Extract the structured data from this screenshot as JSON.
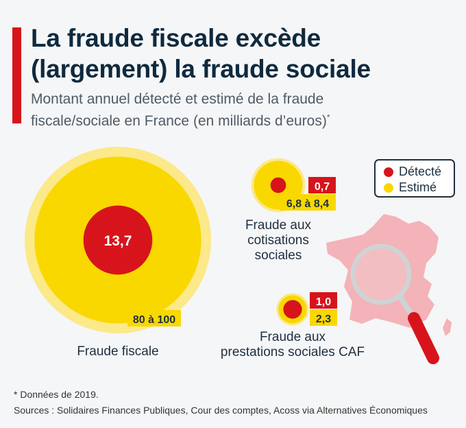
{
  "header": {
    "title_line1": "La fraude fiscale excède",
    "title_line2": "(largement) la fraude sociale",
    "subtitle_line1": "Montant annuel détecté et estimé de la fraude",
    "subtitle_line2": "fiscale/sociale en France (en milliards d’euros)",
    "subtitle_mark": "*"
  },
  "legend": {
    "detected_label": "Détecté",
    "estimated_label": "Estimé"
  },
  "colors": {
    "detected": "#d7141b",
    "estimated": "#f9d800",
    "estimated_halo": "#fbe98a",
    "map": "#f3b3b8",
    "magnifier": "#d7141b"
  },
  "icons": {
    "map": "france-map-icon",
    "magnifier": "magnifying-glass-icon"
  },
  "chart_data": {
    "type": "bubble",
    "unit": "milliards d’euros",
    "items": [
      {
        "category": "Fraude fiscale",
        "detected": 13.7,
        "detected_label": "13,7",
        "estimated_min": 80,
        "estimated_max": 100,
        "estimated_label": "80 à 100"
      },
      {
        "category": "Fraude aux cotisations sociales",
        "category_lines": [
          "Fraude aux",
          "cotisations",
          "sociales"
        ],
        "detected": 0.7,
        "detected_label": "0,7",
        "estimated_min": 6.8,
        "estimated_max": 8.4,
        "estimated_label": "6,8 à 8,4"
      },
      {
        "category": "Fraude aux prestations sociales CAF",
        "category_lines": [
          "Fraude aux",
          "prestations sociales CAF"
        ],
        "detected": 1.0,
        "detected_label": "1,0",
        "estimated": 2.3,
        "estimated_label": "2,3"
      }
    ]
  },
  "footer": {
    "footnote": "* Données de 2019.",
    "sources": "Sources : Solidaires Finances Publiques, Cour des comptes, Acoss via Alternatives Économiques"
  }
}
